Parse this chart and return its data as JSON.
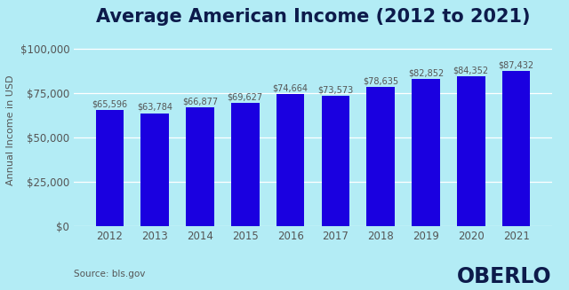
{
  "title": "Average American Income (2012 to 2021)",
  "ylabel": "Annual Income in USD",
  "source_text": "Source: bls.gov",
  "branding_text": "OBERLO",
  "years": [
    2012,
    2013,
    2014,
    2015,
    2016,
    2017,
    2018,
    2019,
    2020,
    2021
  ],
  "values": [
    65596,
    63784,
    66877,
    69627,
    74664,
    73573,
    78635,
    82852,
    84352,
    87432
  ],
  "labels": [
    "$65,596",
    "$63,784",
    "$66,877",
    "$69,627",
    "$74,664",
    "$73,573",
    "$78,635",
    "$82,852",
    "$84,352",
    "$87,432"
  ],
  "bar_color": "#1a00e0",
  "background_color": "#b3ecf5",
  "title_color": "#0d1b4b",
  "tick_color": "#555555",
  "label_color": "#555555",
  "yticks": [
    0,
    25000,
    50000,
    75000,
    100000
  ],
  "ylim": [
    0,
    108000
  ],
  "title_fontsize": 15,
  "label_fontsize": 7,
  "tick_fontsize": 8.5,
  "ylabel_fontsize": 8,
  "source_fontsize": 7.5,
  "branding_fontsize": 17,
  "bar_width": 0.62
}
